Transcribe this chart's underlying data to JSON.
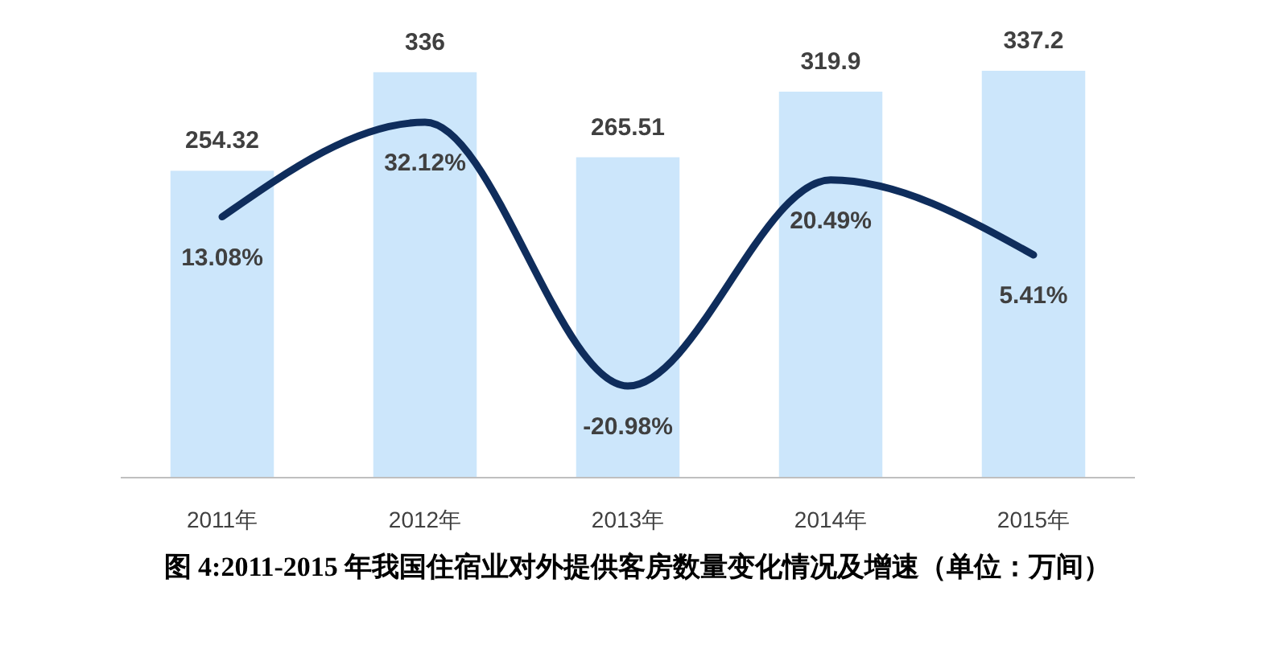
{
  "chart_data": {
    "type": "bar",
    "title": "图 4:2011-2015 年我国住宿业对外提供客房数量变化情况及增速（单位：万间）",
    "categories": [
      "2011年",
      "2012年",
      "2013年",
      "2014年",
      "2015年"
    ],
    "data_labels": true,
    "series": [
      {
        "color": "#cce6fb",
        "values": [
          254.32,
          336,
          265.51,
          319.9,
          337.2
        ]
      },
      {
        "type": "line",
        "axis": "y2",
        "color": "#0f2d5c",
        "values": [
          13.08,
          32.12,
          -20.98,
          20.49,
          5.41
        ],
        "value_labels": [
          "13.08%",
          "32.12%",
          "-20.98%",
          "20.49%",
          "5.41%"
        ]
      }
    ]
  }
}
